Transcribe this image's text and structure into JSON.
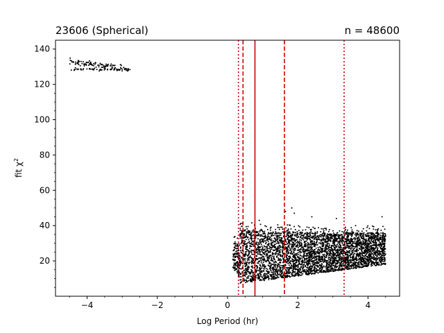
{
  "chart_data": {
    "type": "scatter",
    "title_left": "23606 (Spherical)",
    "title_right": "n = 48600",
    "xlabel": "Log Period (hr)",
    "ylabel": "fit χ²",
    "ylabel_base": "fit χ",
    "ylabel_sup": "2",
    "xlim": [
      -4.9,
      4.9
    ],
    "ylim": [
      0,
      145
    ],
    "xticks": [
      -4,
      -2,
      0,
      2,
      4
    ],
    "xtick_labels": [
      "−4",
      "−2",
      "0",
      "2",
      "4"
    ],
    "yticks": [
      20,
      40,
      60,
      80,
      100,
      120,
      140
    ],
    "ytick_labels": [
      "20",
      "40",
      "60",
      "80",
      "100",
      "120",
      "140"
    ],
    "vlines": [
      {
        "x": 0.78,
        "style": "solid"
      },
      {
        "x": 0.44,
        "style": "dashed"
      },
      {
        "x": 1.62,
        "style": "dashed"
      },
      {
        "x": 0.31,
        "style": "dotted"
      },
      {
        "x": 3.32,
        "style": "dotted"
      }
    ],
    "vline_color": "#cc0000",
    "point_color": "#000000",
    "clusters": [
      {
        "name": "upper-left",
        "x_range": [
          -4.5,
          -2.75
        ],
        "y_range": [
          126,
          139
        ],
        "count": 160
      },
      {
        "name": "main",
        "x_range": [
          0.15,
          4.5
        ],
        "y_range": [
          7,
          45
        ],
        "count": 4200
      }
    ],
    "outliers": [
      {
        "x": 1.83,
        "y": 50
      },
      {
        "x": 1.65,
        "y": 48
      },
      {
        "x": 1.9,
        "y": 47
      },
      {
        "x": 2.4,
        "y": 45
      },
      {
        "x": 4.4,
        "y": 45
      },
      {
        "x": 3.1,
        "y": 44
      },
      {
        "x": 0.9,
        "y": 43
      }
    ]
  }
}
